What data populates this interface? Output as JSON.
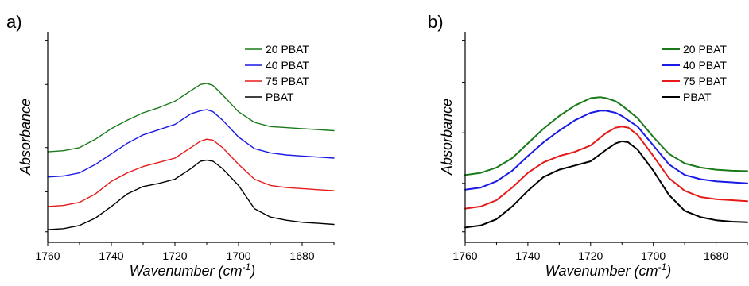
{
  "chart_data": [
    {
      "type": "line",
      "panel_label": "a)",
      "xlabel": "Wavenumber (cm",
      "xlabel_sup": "-1",
      "xlabel_close": ")",
      "ylabel": "Absorbance",
      "x_reversed": true,
      "xlim": [
        1760,
        1670
      ],
      "ylim": [
        0,
        1
      ],
      "xticks": [
        1760,
        1740,
        1720,
        1700,
        1680
      ],
      "y_tick_labels_shown": false,
      "grid": false,
      "legend_position": "top-right",
      "series": [
        {
          "name": "20 PBAT",
          "color": "#1a7a1a",
          "x": [
            1760,
            1755,
            1750,
            1745,
            1740,
            1735,
            1730,
            1725,
            1720,
            1715,
            1712,
            1710,
            1708,
            1705,
            1700,
            1695,
            1690,
            1685,
            1680,
            1675,
            1670
          ],
          "y": [
            0.43,
            0.435,
            0.45,
            0.49,
            0.54,
            0.58,
            0.615,
            0.64,
            0.67,
            0.72,
            0.75,
            0.755,
            0.745,
            0.7,
            0.62,
            0.57,
            0.55,
            0.545,
            0.54,
            0.535,
            0.53
          ]
        },
        {
          "name": "40 PBAT",
          "color": "#1a1ae6",
          "x": [
            1760,
            1755,
            1750,
            1745,
            1740,
            1735,
            1730,
            1725,
            1720,
            1715,
            1712,
            1710,
            1708,
            1705,
            1700,
            1695,
            1690,
            1685,
            1680,
            1675,
            1670
          ],
          "y": [
            0.31,
            0.315,
            0.33,
            0.37,
            0.42,
            0.47,
            0.51,
            0.535,
            0.56,
            0.61,
            0.625,
            0.63,
            0.62,
            0.58,
            0.5,
            0.445,
            0.425,
            0.415,
            0.41,
            0.405,
            0.4
          ]
        },
        {
          "name": "75 PBAT",
          "color": "#e61a1a",
          "x": [
            1760,
            1755,
            1750,
            1745,
            1740,
            1735,
            1730,
            1725,
            1720,
            1715,
            1712,
            1710,
            1708,
            1705,
            1700,
            1695,
            1690,
            1685,
            1680,
            1675,
            1670
          ],
          "y": [
            0.17,
            0.175,
            0.19,
            0.23,
            0.29,
            0.33,
            0.36,
            0.38,
            0.4,
            0.45,
            0.48,
            0.49,
            0.485,
            0.45,
            0.37,
            0.3,
            0.27,
            0.26,
            0.255,
            0.25,
            0.245
          ]
        },
        {
          "name": "PBAT",
          "color": "#000000",
          "x": [
            1760,
            1755,
            1750,
            1745,
            1740,
            1735,
            1730,
            1725,
            1720,
            1715,
            1712,
            1710,
            1708,
            1705,
            1700,
            1695,
            1690,
            1685,
            1680,
            1675,
            1670
          ],
          "y": [
            0.06,
            0.065,
            0.08,
            0.115,
            0.17,
            0.23,
            0.265,
            0.28,
            0.3,
            0.35,
            0.385,
            0.39,
            0.385,
            0.35,
            0.27,
            0.16,
            0.12,
            0.105,
            0.095,
            0.09,
            0.085
          ]
        }
      ]
    },
    {
      "type": "line",
      "panel_label": "b)",
      "xlabel": "Wavenumber (cm",
      "xlabel_sup": "-1",
      "xlabel_close": ")",
      "ylabel": "Absorbance",
      "x_reversed": true,
      "xlim": [
        1760,
        1670
      ],
      "ylim": [
        0,
        1
      ],
      "xticks": [
        1760,
        1740,
        1720,
        1700,
        1680
      ],
      "y_tick_labels_shown": false,
      "grid": false,
      "legend_position": "top-right",
      "series": [
        {
          "name": "20 PBAT",
          "color": "#1a7a1a",
          "x": [
            1760,
            1755,
            1750,
            1745,
            1740,
            1735,
            1730,
            1725,
            1720,
            1717,
            1715,
            1712,
            1710,
            1705,
            1700,
            1695,
            1690,
            1685,
            1680,
            1675,
            1670
          ],
          "y": [
            0.32,
            0.33,
            0.355,
            0.4,
            0.47,
            0.54,
            0.6,
            0.65,
            0.685,
            0.69,
            0.685,
            0.67,
            0.65,
            0.59,
            0.5,
            0.42,
            0.375,
            0.355,
            0.345,
            0.34,
            0.338
          ]
        },
        {
          "name": "40 PBAT",
          "color": "#1a1ae6",
          "x": [
            1760,
            1755,
            1750,
            1745,
            1740,
            1735,
            1730,
            1725,
            1720,
            1717,
            1715,
            1712,
            1710,
            1705,
            1700,
            1695,
            1690,
            1685,
            1680,
            1675,
            1670
          ],
          "y": [
            0.25,
            0.26,
            0.29,
            0.34,
            0.41,
            0.475,
            0.53,
            0.58,
            0.615,
            0.625,
            0.625,
            0.615,
            0.6,
            0.55,
            0.46,
            0.37,
            0.32,
            0.3,
            0.29,
            0.285,
            0.28
          ]
        },
        {
          "name": "75 PBAT",
          "color": "#e61a1a",
          "x": [
            1760,
            1755,
            1750,
            1745,
            1740,
            1735,
            1730,
            1725,
            1720,
            1715,
            1712,
            1710,
            1708,
            1705,
            1700,
            1695,
            1690,
            1685,
            1680,
            1675,
            1670
          ],
          "y": [
            0.16,
            0.17,
            0.2,
            0.26,
            0.33,
            0.38,
            0.41,
            0.43,
            0.46,
            0.52,
            0.545,
            0.55,
            0.545,
            0.51,
            0.41,
            0.305,
            0.245,
            0.215,
            0.205,
            0.2,
            0.195
          ]
        },
        {
          "name": "PBAT",
          "color": "#000000",
          "x": [
            1760,
            1755,
            1750,
            1745,
            1740,
            1735,
            1730,
            1725,
            1720,
            1715,
            1712,
            1710,
            1708,
            1705,
            1700,
            1695,
            1690,
            1685,
            1680,
            1675,
            1670
          ],
          "y": [
            0.07,
            0.08,
            0.11,
            0.17,
            0.245,
            0.31,
            0.345,
            0.365,
            0.385,
            0.44,
            0.47,
            0.48,
            0.475,
            0.44,
            0.34,
            0.225,
            0.15,
            0.12,
            0.105,
            0.098,
            0.095
          ]
        }
      ]
    }
  ]
}
